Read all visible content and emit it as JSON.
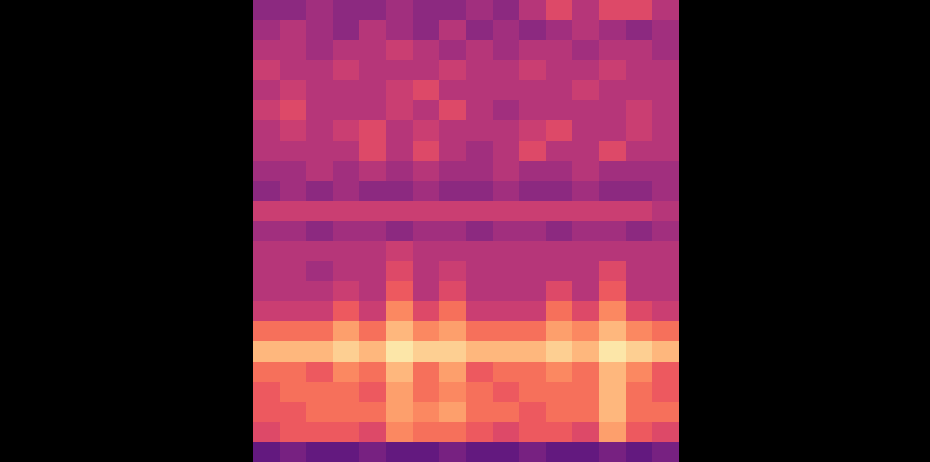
{
  "chart_data": {
    "type": "heatmap",
    "color": "magma",
    "tick_labels": false,
    "zlim": [
      0,
      10
    ],
    "cells": [
      [
        4,
        4,
        4.5,
        4,
        4,
        4.5,
        4,
        4,
        4.5,
        4,
        5,
        6,
        5,
        6,
        6,
        5
      ],
      [
        4.5,
        5,
        4.5,
        4,
        5,
        4.5,
        4,
        5,
        4,
        4.5,
        4,
        4.5,
        5,
        4.5,
        4,
        4.5
      ],
      [
        5,
        5,
        4.5,
        5,
        5,
        5.5,
        5,
        4.5,
        5,
        4.5,
        5,
        5,
        4.5,
        5,
        5,
        4.5
      ],
      [
        5.5,
        5,
        5,
        5.5,
        5,
        5,
        5,
        5.5,
        5,
        5,
        5.5,
        5,
        5,
        5.5,
        5,
        5
      ],
      [
        5,
        5.5,
        5,
        5,
        5,
        5.5,
        6,
        5,
        5,
        5,
        5,
        5,
        5.5,
        5,
        5,
        5
      ],
      [
        5.5,
        6,
        5,
        5,
        5,
        5.5,
        5,
        6,
        5,
        4.5,
        5,
        5,
        5,
        5,
        5.5,
        5
      ],
      [
        5,
        5.5,
        5,
        5.5,
        6,
        5,
        5.5,
        5,
        5,
        5,
        5.5,
        6,
        5,
        5,
        5.5,
        5
      ],
      [
        5,
        5,
        5,
        5,
        6,
        5,
        6,
        5,
        4.5,
        5,
        6,
        5,
        5,
        6,
        5,
        5
      ],
      [
        4.5,
        4.5,
        5,
        4.5,
        5,
        4.5,
        5,
        4.5,
        4.5,
        5,
        4.5,
        4.5,
        5,
        4.5,
        4.5,
        4.5
      ],
      [
        4,
        4.5,
        4,
        4.5,
        4,
        4,
        4.5,
        4,
        4,
        4.5,
        4,
        4,
        4.5,
        4,
        4,
        4.5
      ],
      [
        5.5,
        5.5,
        5.5,
        5.5,
        5.5,
        5.5,
        5.5,
        5.5,
        5.5,
        5.5,
        5.5,
        5.5,
        5.5,
        5.5,
        5.5,
        5
      ],
      [
        4.5,
        4.5,
        4,
        4.5,
        4.5,
        4,
        4.5,
        4.5,
        4,
        4.5,
        4.5,
        4,
        4.5,
        4.5,
        4,
        4.5
      ],
      [
        5,
        5,
        5,
        5,
        5,
        5.5,
        5,
        5,
        5,
        5,
        5,
        5,
        5,
        5,
        5,
        5
      ],
      [
        5,
        5,
        4.5,
        5,
        5,
        6,
        5,
        5.5,
        5,
        5,
        5,
        5,
        5,
        6,
        5,
        5
      ],
      [
        5,
        5,
        5,
        5.5,
        5,
        6.5,
        5,
        6,
        5,
        5,
        5,
        6,
        5,
        6.5,
        5,
        5
      ],
      [
        5.5,
        5.5,
        5.5,
        6.5,
        5.5,
        7.5,
        6,
        7,
        5.5,
        5.5,
        5.5,
        7,
        6,
        7.5,
        6,
        5.5
      ],
      [
        7,
        7,
        7,
        8,
        7,
        8.5,
        7.5,
        8,
        7,
        7,
        7,
        8,
        7.5,
        8.5,
        7.5,
        7
      ],
      [
        8.5,
        8.5,
        8.5,
        9,
        8.5,
        9.5,
        9,
        9,
        8.5,
        8.5,
        8.5,
        9,
        8.5,
        9.5,
        9,
        8.5
      ],
      [
        7,
        7,
        6.5,
        7.5,
        7,
        8.5,
        7,
        8,
        6.5,
        7,
        7,
        7.5,
        7,
        8.5,
        7.5,
        6.5
      ],
      [
        6.5,
        7,
        7,
        7,
        6.5,
        8,
        7,
        7.5,
        7,
        6.5,
        7,
        7,
        7,
        8.5,
        7,
        6.5
      ],
      [
        6.5,
        6.5,
        7,
        7,
        7,
        8,
        7.5,
        8,
        7,
        7,
        6.5,
        7,
        7,
        8.5,
        7,
        7
      ],
      [
        6,
        6.5,
        6.5,
        6.5,
        6,
        7.5,
        7,
        7,
        6.5,
        6,
        6.5,
        6.5,
        6,
        8,
        6.5,
        6
      ],
      [
        3,
        3.5,
        3,
        3,
        3.5,
        3,
        3,
        3.5,
        3,
        3,
        3.5,
        3,
        3,
        3.5,
        3,
        3.5
      ]
    ]
  }
}
